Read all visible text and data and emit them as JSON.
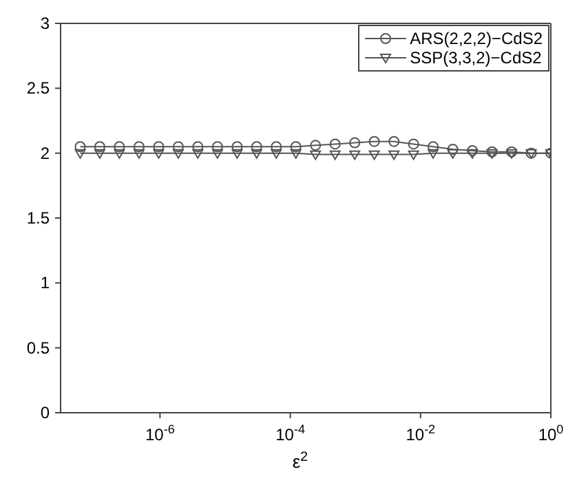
{
  "chart_data": {
    "type": "line",
    "xlabel": "ε$^{2}$",
    "log": "x",
    "grid": false,
    "legend": "top right",
    "x": [
      5.96e-08,
      1.19e-07,
      2.38e-07,
      4.77e-07,
      9.54e-07,
      1.91e-06,
      3.81e-06,
      7.63e-06,
      1.53e-05,
      3.05e-05,
      6.1e-05,
      0.000122,
      0.000244,
      0.000488,
      0.000977,
      0.00195,
      0.00391,
      0.00781,
      0.0156,
      0.0313,
      0.0625,
      0.125,
      0.25,
      0.5,
      1
    ],
    "series": [
      {
        "name": "ARS(2,2,2)−CdS2",
        "color": "#555555",
        "marker": "circle",
        "values": [
          2.05,
          2.05,
          2.05,
          2.05,
          2.05,
          2.05,
          2.05,
          2.05,
          2.05,
          2.05,
          2.05,
          2.05,
          2.06,
          2.07,
          2.08,
          2.09,
          2.09,
          2.07,
          2.05,
          2.03,
          2.02,
          2.01,
          2.01,
          2.0,
          2.0
        ]
      },
      {
        "name": "SSP(3,3,2)−CdS2",
        "color": "#555555",
        "marker": "triangle",
        "values": [
          2.0,
          2.0,
          2.0,
          2.0,
          2.0,
          2.0,
          2.0,
          2.0,
          2.0,
          2.0,
          2.0,
          2.0,
          1.99,
          1.99,
          1.99,
          1.99,
          1.99,
          1.99,
          2.0,
          2.0,
          2.0,
          2.0,
          2.0,
          2.0,
          2.0
        ]
      }
    ],
    "xlim": [
      2.98e-08,
      1
    ],
    "xticks": [
      {
        "value": 1e-06,
        "label": "10$^{-6}$"
      },
      {
        "value": 0.0001,
        "label": "10$^{-4}$"
      },
      {
        "value": 0.01,
        "label": "10$^{-2}$"
      },
      {
        "value": 1,
        "label": "10$^{0}$"
      }
    ],
    "ylim": [
      0,
      3
    ],
    "yticks": [
      0,
      0.5,
      1,
      1.5,
      2,
      2.5,
      3
    ]
  }
}
